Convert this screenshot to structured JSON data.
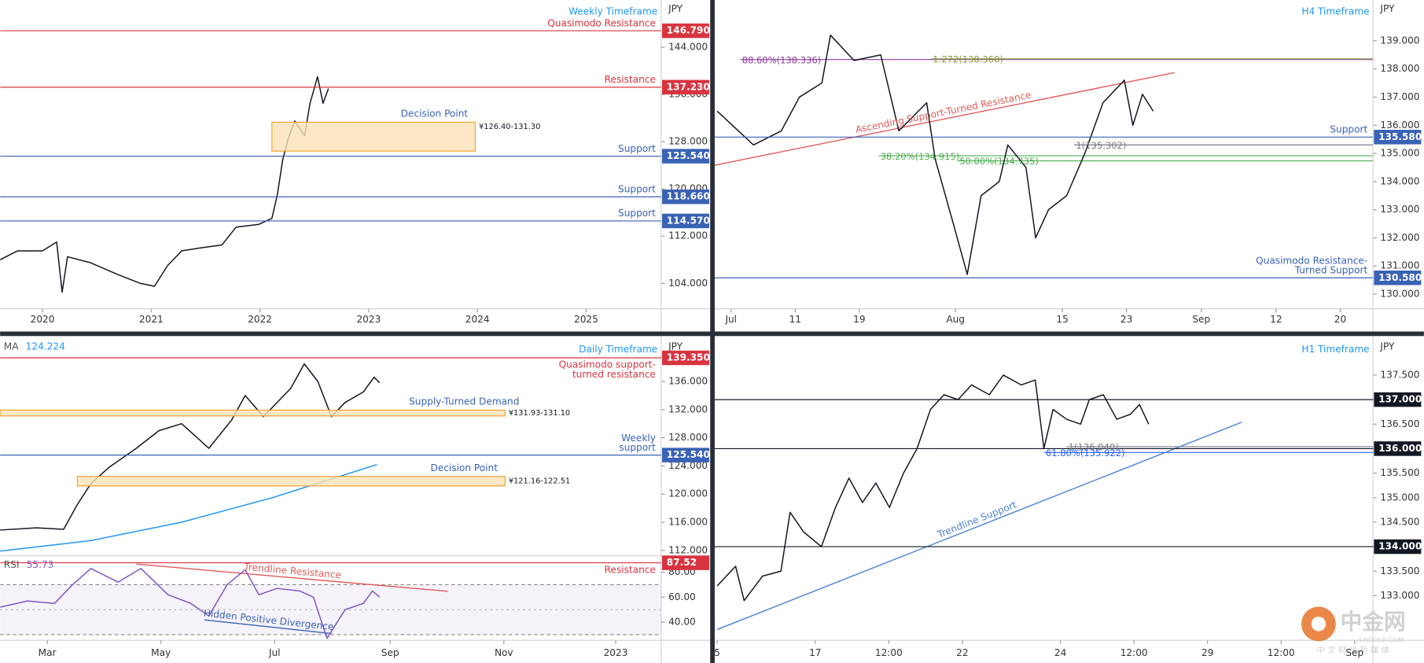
{
  "chart_data": [
    {
      "type": "line",
      "title": "Weekly Timeframe",
      "unit": "JPY",
      "xlim": [
        2019.61,
        2025.69
      ],
      "xticks": [
        2020,
        2021,
        2022,
        2023,
        2024,
        2025
      ],
      "ylim": [
        99.69,
        152
      ],
      "yticks": [
        {
          "value": 104,
          "label": "104.000"
        },
        {
          "value": 112,
          "label": "112.000"
        },
        {
          "value": 120,
          "label": "120.000"
        },
        {
          "value": 128,
          "label": "128.000"
        },
        {
          "value": 136,
          "label": "136.000"
        },
        {
          "value": 144,
          "label": "144.000"
        }
      ],
      "series": [
        {
          "color": "#131722",
          "x": [
            2019.61,
            2019.77,
            2020.0,
            2020.13,
            2020.18,
            2020.23,
            2020.44,
            2020.69,
            2020.9,
            2021.03,
            2021.15,
            2021.28,
            2021.45,
            2021.65,
            2021.78,
            2021.99,
            2022.11,
            2022.16,
            2022.21,
            2022.26,
            2022.32,
            2022.41,
            2022.46,
            2022.53,
            2022.58,
            2022.63
          ],
          "values": [
            108.0,
            109.5,
            109.5,
            111.0,
            102.5,
            108.5,
            107.5,
            105.5,
            104.0,
            103.5,
            107.0,
            109.5,
            110.0,
            110.5,
            113.5,
            114.0,
            115.0,
            119.0,
            125.0,
            128.5,
            131.5,
            129.0,
            134.5,
            139.0,
            134.5,
            137.0
          ]
        }
      ],
      "levels": [
        {
          "value": 146.79,
          "label": "146.790",
          "text": [
            "Quasimodo Resistance"
          ],
          "color": "#d8343f"
        },
        {
          "value": 137.23,
          "label": "137.230",
          "text": [
            "Resistance"
          ],
          "color": "#d8343f"
        },
        {
          "value": 125.54,
          "label": "125.540",
          "text": [
            "Support"
          ],
          "color": "#3a62b5"
        },
        {
          "value": 118.66,
          "label": "118.660",
          "text": [
            "Support"
          ],
          "color": "#3a62b5"
        },
        {
          "value": 114.57,
          "label": "114.570",
          "text": [
            "Support"
          ],
          "color": "#3a62b5"
        }
      ],
      "zones": [
        {
          "low": 126.4,
          "high": 131.3,
          "x": [
            2022.11,
            2023.98
          ],
          "label": "Decision Point",
          "text": "¥126.40-131.30"
        }
      ]
    },
    {
      "type": "line",
      "title": "H4 Timeframe",
      "unit": "JPY",
      "xlim": [
        -1.53,
        60.07
      ],
      "xticks": [
        {
          "value": 0,
          "label": "Jul"
        },
        {
          "value": 6,
          "label": "11"
        },
        {
          "value": 12,
          "label": "19"
        },
        {
          "value": 21,
          "label": "Aug"
        },
        {
          "value": 31,
          "label": "15"
        },
        {
          "value": 37,
          "label": "23"
        },
        {
          "value": 44,
          "label": "Sep"
        },
        {
          "value": 51,
          "label": "12"
        },
        {
          "value": 57,
          "label": "20"
        }
      ],
      "ylim": [
        129.48,
        140.45
      ],
      "yticks": [
        {
          "value": 130,
          "label": "130.000"
        },
        {
          "value": 131,
          "label": "131.000"
        },
        {
          "value": 132,
          "label": "132.000"
        },
        {
          "value": 133,
          "label": "133.000"
        },
        {
          "value": 134,
          "label": "134.000"
        },
        {
          "value": 135,
          "label": "135.000"
        },
        {
          "value": 136,
          "label": "136.000"
        },
        {
          "value": 137,
          "label": "137.000"
        },
        {
          "value": 138,
          "label": "138.000"
        },
        {
          "value": 139,
          "label": "139.000"
        }
      ],
      "series": [
        {
          "color": "#131722",
          "x": [
            -1.3,
            2.1,
            4.7,
            6.4,
            8.5,
            9.3,
            11.5,
            14.0,
            15.7,
            18.3,
            19.1,
            20.8,
            22.1,
            23.4,
            25.1,
            25.9,
            27.6,
            28.5,
            29.7,
            31.4,
            33.1,
            34.8,
            36.8,
            37.6,
            38.5,
            39.5
          ],
          "values": [
            136.5,
            135.3,
            135.8,
            137.0,
            137.5,
            139.2,
            138.3,
            138.5,
            135.8,
            136.8,
            134.8,
            132.5,
            130.7,
            133.5,
            134.0,
            135.3,
            134.5,
            132.0,
            133.0,
            133.5,
            135.0,
            136.8,
            137.6,
            136.0,
            137.1,
            136.5
          ]
        }
      ],
      "levels": [
        {
          "value": 135.58,
          "label": "135.580",
          "text": [
            "Support"
          ],
          "color": "#3a62b5"
        },
        {
          "value": 130.58,
          "label": "130.580",
          "text": [
            "Quasimodo Resistance-",
            "Turned Support"
          ],
          "color": "#3a62b5"
        }
      ],
      "fibs": [
        {
          "value": 138.336,
          "from": 0.85,
          "text": "88.60%(138.336)",
          "color": "#8e3a9e"
        },
        {
          "value": 138.36,
          "from": 18.7,
          "text": "1.272(138.360)",
          "color": "#8a9a3a"
        },
        {
          "value": 135.302,
          "from": 32.1,
          "text": "1(135.302)",
          "color": "#787b86"
        },
        {
          "value": 134.915,
          "from": 13.8,
          "text": "38.20%(134.915)",
          "color": "#4caf50"
        },
        {
          "value": 134.735,
          "from": 21.2,
          "text": "50.00%(134.735)",
          "color": "#4caf50"
        }
      ],
      "trendlines": [
        {
          "x": [
            -1.53,
            41.5
          ],
          "y": [
            134.58,
            137.87
          ],
          "text": "Ascending Support-Turned Resistance",
          "color": "#e05a5a"
        }
      ]
    },
    {
      "type": "line",
      "title": "Daily Timeframe",
      "unit": "JPY",
      "xlim": [
        34.7,
        389.4
      ],
      "ylim": [
        111.23,
        142.19
      ],
      "yticks": [
        {
          "value": 112,
          "label": "112.000"
        },
        {
          "value": 116,
          "label": "116.000"
        },
        {
          "value": 120,
          "label": "120.000"
        },
        {
          "value": 124,
          "label": "124.000"
        },
        {
          "value": 128,
          "label": "128.000"
        },
        {
          "value": 132,
          "label": "132.000"
        },
        {
          "value": 136,
          "label": "136.000"
        }
      ],
      "series": [
        {
          "color": "#131722",
          "x": [
            34.7,
            54.2,
            68.8,
            76.1,
            83.4,
            93.1,
            107.8,
            119.9,
            132.1,
            146.7,
            158.9,
            166.2,
            176.0,
            190.6,
            197.9,
            205.2,
            212.5,
            219.8,
            229.6,
            235.4,
            238.3
          ],
          "values": [
            114.9,
            115.2,
            115.0,
            118.5,
            121.5,
            123.8,
            126.5,
            129.0,
            130.0,
            126.5,
            130.5,
            134.0,
            131.0,
            135.0,
            138.5,
            136.0,
            131.0,
            133.0,
            134.5,
            136.6,
            135.8
          ]
        },
        {
          "name": "MA",
          "last": 124.224,
          "color": "#2196f3",
          "x": [
            34.7,
            83.4,
            132.1,
            180.9,
            236.9
          ],
          "values": [
            111.9,
            113.4,
            116.0,
            119.5,
            124.2
          ]
        }
      ],
      "levels": [
        {
          "value": 139.35,
          "label": "139.350",
          "text": [
            "Quasimodo support-",
            "turned resistance"
          ],
          "color": "#d8343f"
        },
        {
          "value": 125.54,
          "label": "125.540",
          "text": [
            "Weekly",
            "support"
          ],
          "color": "#3a62b5"
        }
      ],
      "zones": [
        {
          "low": 131.1,
          "high": 131.93,
          "x": [
            34.7,
            305.6
          ],
          "label": "Supply-Turned Demand",
          "text": "¥131.93-131.10"
        },
        {
          "low": 121.16,
          "high": 122.51,
          "x": [
            76.1,
            305.6
          ],
          "label": "Decision Point",
          "text": "¥121.16-122.51"
        }
      ]
    },
    {
      "type": "line",
      "xlim": [
        34.7,
        389.4
      ],
      "xticks": [
        {
          "value": 60,
          "label": "Mar"
        },
        {
          "value": 121,
          "label": "May"
        },
        {
          "value": 182,
          "label": "Jul"
        },
        {
          "value": 244,
          "label": "Sep"
        },
        {
          "value": 305,
          "label": "Nov"
        },
        {
          "value": 365,
          "label": "2023"
        }
      ],
      "ylim": [
        25.5,
        93.1
      ],
      "yticks": [
        {
          "value": 40,
          "label": "40.00"
        },
        {
          "value": 60,
          "label": "60.00"
        },
        {
          "value": 80,
          "label": "80.00"
        }
      ],
      "band": [
        30,
        70
      ],
      "midline": 50,
      "series": [
        {
          "name": "RSI",
          "last": 55.73,
          "color": "#7e57c2",
          "x": [
            34.7,
            49.3,
            63.9,
            73.6,
            83.4,
            98.0,
            110.2,
            124.8,
            137.0,
            146.7,
            156.5,
            166.2,
            173.5,
            183.3,
            195.5,
            202.8,
            210.1,
            219.8,
            229.6,
            234.5,
            238.3
          ],
          "values": [
            52,
            57,
            55,
            70,
            83,
            72,
            83,
            62,
            55,
            45,
            70,
            82,
            62,
            67,
            65,
            60,
            27,
            50,
            55,
            65,
            60
          ]
        }
      ],
      "levels": [
        {
          "value": 87.52,
          "label": "87.52",
          "text": [
            "Resistance"
          ],
          "color": "#d8343f"
        }
      ],
      "trendlines": [
        {
          "x": [
            107.8,
            274.9
          ],
          "y": [
            86.5,
            64.7
          ],
          "text": "Trendline Resistance",
          "color": "#e05a5a"
        },
        {
          "x": [
            144.3,
            212.5
          ],
          "y": [
            41.8,
            30.9
          ],
          "text": "Hidden Positive Divergence",
          "color": "#3a62b5"
        }
      ]
    },
    {
      "type": "line",
      "title": "H1 Timeframe",
      "unit": "JPY",
      "xlim": [
        -0.4,
        107
      ],
      "xticks": [
        {
          "value": 0,
          "label": "5"
        },
        {
          "value": 16,
          "label": "17"
        },
        {
          "value": 28,
          "label": "12:00"
        },
        {
          "value": 40,
          "label": "22"
        },
        {
          "value": 56,
          "label": "24"
        },
        {
          "value": 68,
          "label": "12:00"
        },
        {
          "value": 80,
          "label": "29"
        },
        {
          "value": 92,
          "label": "12:00"
        },
        {
          "value": 104,
          "label": "Sep"
        }
      ],
      "ylim": [
        132.09,
        138.26
      ],
      "yticks": [
        {
          "value": 133,
          "label": "133.000"
        },
        {
          "value": 133.5,
          "label": "133.500"
        },
        {
          "value": 134,
          "label": "134.000"
        },
        {
          "value": 134.5,
          "label": "134.500"
        },
        {
          "value": 135,
          "label": "135.000"
        },
        {
          "value": 135.5,
          "label": "135.500"
        },
        {
          "value": 136,
          "label": "136.000"
        },
        {
          "value": 136.5,
          "label": "136.500"
        },
        {
          "value": 137,
          "label": "137.000"
        },
        {
          "value": 137.5,
          "label": "137.500"
        }
      ],
      "series": [
        {
          "color": "#131722",
          "x": [
            0,
            3.0,
            4.4,
            7.4,
            10.4,
            11.9,
            14.1,
            17.0,
            19.3,
            21.5,
            23.7,
            25.9,
            28.1,
            30.4,
            32.6,
            34.8,
            37.0,
            39.3,
            41.5,
            44.4,
            46.7,
            49.6,
            51.9,
            53.3,
            54.8,
            57.0,
            59.3,
            60.7,
            63.0,
            65.2,
            67.4,
            68.9,
            70.4
          ],
          "values": [
            133.2,
            133.6,
            132.9,
            133.4,
            133.5,
            134.7,
            134.3,
            134.0,
            134.8,
            135.4,
            134.9,
            135.3,
            134.8,
            135.5,
            136.0,
            136.8,
            137.1,
            137.0,
            137.3,
            137.1,
            137.5,
            137.3,
            137.4,
            136.0,
            136.8,
            136.6,
            136.5,
            137.0,
            137.1,
            136.6,
            136.7,
            136.9,
            136.5
          ]
        }
      ],
      "levels": [
        {
          "value": 137,
          "label": "137.000",
          "color": "#131722"
        },
        {
          "value": 136,
          "label": "136.000",
          "color": "#131722"
        },
        {
          "value": 134,
          "label": "134.000",
          "color": "#131722"
        }
      ],
      "fibs": [
        {
          "value": 136.04,
          "from": 57.0,
          "text": "1(136.040)",
          "color": "#787b86"
        },
        {
          "value": 135.922,
          "from": 53.3,
          "text": "61.80%(135.922)",
          "color": "#2962ff"
        }
      ],
      "trendlines": [
        {
          "x": [
            0,
            85.6
          ],
          "y": [
            132.31,
            136.54
          ],
          "text": "Trendline Support",
          "color": "#4a7fd4"
        }
      ]
    }
  ],
  "watermark": {
    "title": "中金网",
    "site": "CNGOLD.COM",
    "tagline": "中 文 财 经 新 媒 体"
  }
}
